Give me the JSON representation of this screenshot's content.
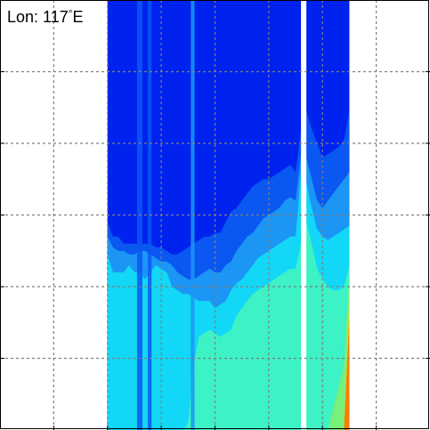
{
  "chart_data": {
    "type": "heatmap",
    "title": "",
    "xlabel": "",
    "ylabel": "",
    "annotation": {
      "prefix": "Lon: 117",
      "degree": "°",
      "suffix": "E"
    },
    "grid": true,
    "xlim": [
      0,
      8
    ],
    "ylim": [
      0,
      6
    ],
    "x_ticks": [
      1,
      2,
      3,
      4,
      5,
      6,
      7
    ],
    "y_ticks": [
      1,
      2,
      3,
      4,
      5
    ],
    "colormap": [
      "#0022ee",
      "#0a57f2",
      "#1b96f5",
      "#12d7f6",
      "#3df2c5",
      "#78f07a",
      "#d6e21a",
      "#ff7a00"
    ],
    "levels": [
      0,
      1,
      2,
      3,
      4,
      5,
      6,
      7
    ],
    "fill_x_range": [
      2,
      6.5
    ],
    "gap_x": [
      5.6,
      5.7
    ],
    "level_boundaries_y": [
      {
        "level": 1,
        "y": [
          2.9,
          2.7,
          2.7,
          2.6,
          2.6,
          2.6,
          2.6,
          2.6,
          2.6,
          2.55,
          2.55,
          2.5,
          2.45,
          2.45,
          2.5,
          2.55,
          2.6,
          2.65,
          2.7,
          2.7,
          2.75,
          2.75,
          2.9,
          3.05,
          3.1,
          3.2,
          3.3,
          3.4,
          3.45,
          3.5,
          3.5,
          3.55,
          3.6,
          3.65,
          3.7,
          3.6,
          4.2,
          4.45,
          4.2,
          4.0,
          3.8,
          3.85,
          3.9,
          3.95,
          4.05,
          4.45
        ]
      },
      {
        "level": 2,
        "y": [
          2.7,
          2.55,
          2.5,
          2.5,
          2.45,
          2.45,
          2.5,
          2.5,
          2.45,
          2.4,
          2.35,
          2.35,
          2.3,
          2.2,
          2.15,
          2.1,
          2.1,
          2.15,
          2.2,
          2.25,
          2.2,
          2.2,
          2.3,
          2.35,
          2.5,
          2.6,
          2.7,
          2.75,
          2.85,
          2.95,
          3.0,
          3.05,
          3.1,
          3.2,
          3.25,
          3.2,
          3.85,
          3.8,
          3.5,
          3.2,
          3.1,
          3.2,
          3.3,
          3.4,
          3.5,
          3.6
        ]
      },
      {
        "level": 3,
        "y": [
          2.45,
          2.2,
          2.2,
          2.2,
          2.3,
          2.2,
          2.2,
          2.1,
          2.2,
          2.3,
          2.25,
          2.2,
          2.0,
          1.95,
          1.9,
          1.9,
          1.85,
          1.8,
          1.8,
          1.8,
          1.7,
          1.75,
          1.8,
          1.95,
          2.05,
          2.1,
          2.2,
          2.3,
          2.4,
          2.45,
          2.5,
          2.55,
          2.6,
          2.65,
          2.7,
          2.7,
          3.6,
          3.45,
          3.1,
          2.8,
          2.7,
          2.65,
          2.7,
          2.75,
          2.8,
          2.85
        ]
      },
      {
        "level": 4,
        "y": [
          0,
          0,
          0,
          0,
          0,
          0,
          0,
          0,
          0,
          0,
          0,
          0,
          0,
          0,
          0,
          0.1,
          0.9,
          1.3,
          1.35,
          1.4,
          1.35,
          1.3,
          1.35,
          1.4,
          1.6,
          1.7,
          1.8,
          1.9,
          1.95,
          2.0,
          2.05,
          2.1,
          2.15,
          2.2,
          2.25,
          2.25,
          2.6,
          2.9,
          2.6,
          2.25,
          2.1,
          2.0,
          1.95,
          1.95,
          2.0,
          2.3
        ]
      },
      {
        "level": 5,
        "y": [
          0,
          0,
          0,
          0,
          0,
          0,
          0,
          0,
          0,
          0,
          0,
          0,
          0,
          0,
          0,
          0,
          0,
          0,
          0,
          0,
          0,
          0,
          0,
          0,
          0,
          0,
          0,
          0,
          0,
          0,
          0,
          0,
          0,
          0,
          0,
          0,
          0,
          0,
          0,
          0,
          0,
          0,
          0.3,
          0.6,
          0.9,
          2.2
        ]
      },
      {
        "level": 6,
        "y": [
          0,
          0,
          0,
          0,
          0,
          0,
          0,
          0,
          0,
          0,
          0,
          0,
          0,
          0,
          0,
          0,
          0,
          0,
          0,
          0,
          0,
          0,
          0,
          0,
          0,
          0,
          0,
          0,
          0,
          0,
          0,
          0,
          0,
          0,
          0,
          0,
          0,
          0,
          0,
          0,
          0,
          0,
          0,
          0,
          0,
          1.9
        ]
      },
      {
        "level": 7,
        "y": [
          0,
          0,
          0,
          0,
          0,
          0,
          0,
          0,
          0,
          0,
          0,
          0,
          0,
          0,
          0,
          0,
          0,
          0,
          0,
          0,
          0,
          0,
          0,
          0,
          0,
          0,
          0,
          0,
          0,
          0,
          0,
          0,
          0,
          0,
          0,
          0,
          0,
          0,
          0,
          0,
          0,
          0,
          0,
          0,
          0,
          1.6
        ]
      }
    ],
    "low_value_streaks": [
      {
        "x": [
          2.55,
          2.65
        ],
        "level": 1
      },
      {
        "x": [
          2.75,
          2.82
        ],
        "level": 1
      },
      {
        "x": [
          3.55,
          3.62
        ],
        "level": 2
      }
    ]
  }
}
